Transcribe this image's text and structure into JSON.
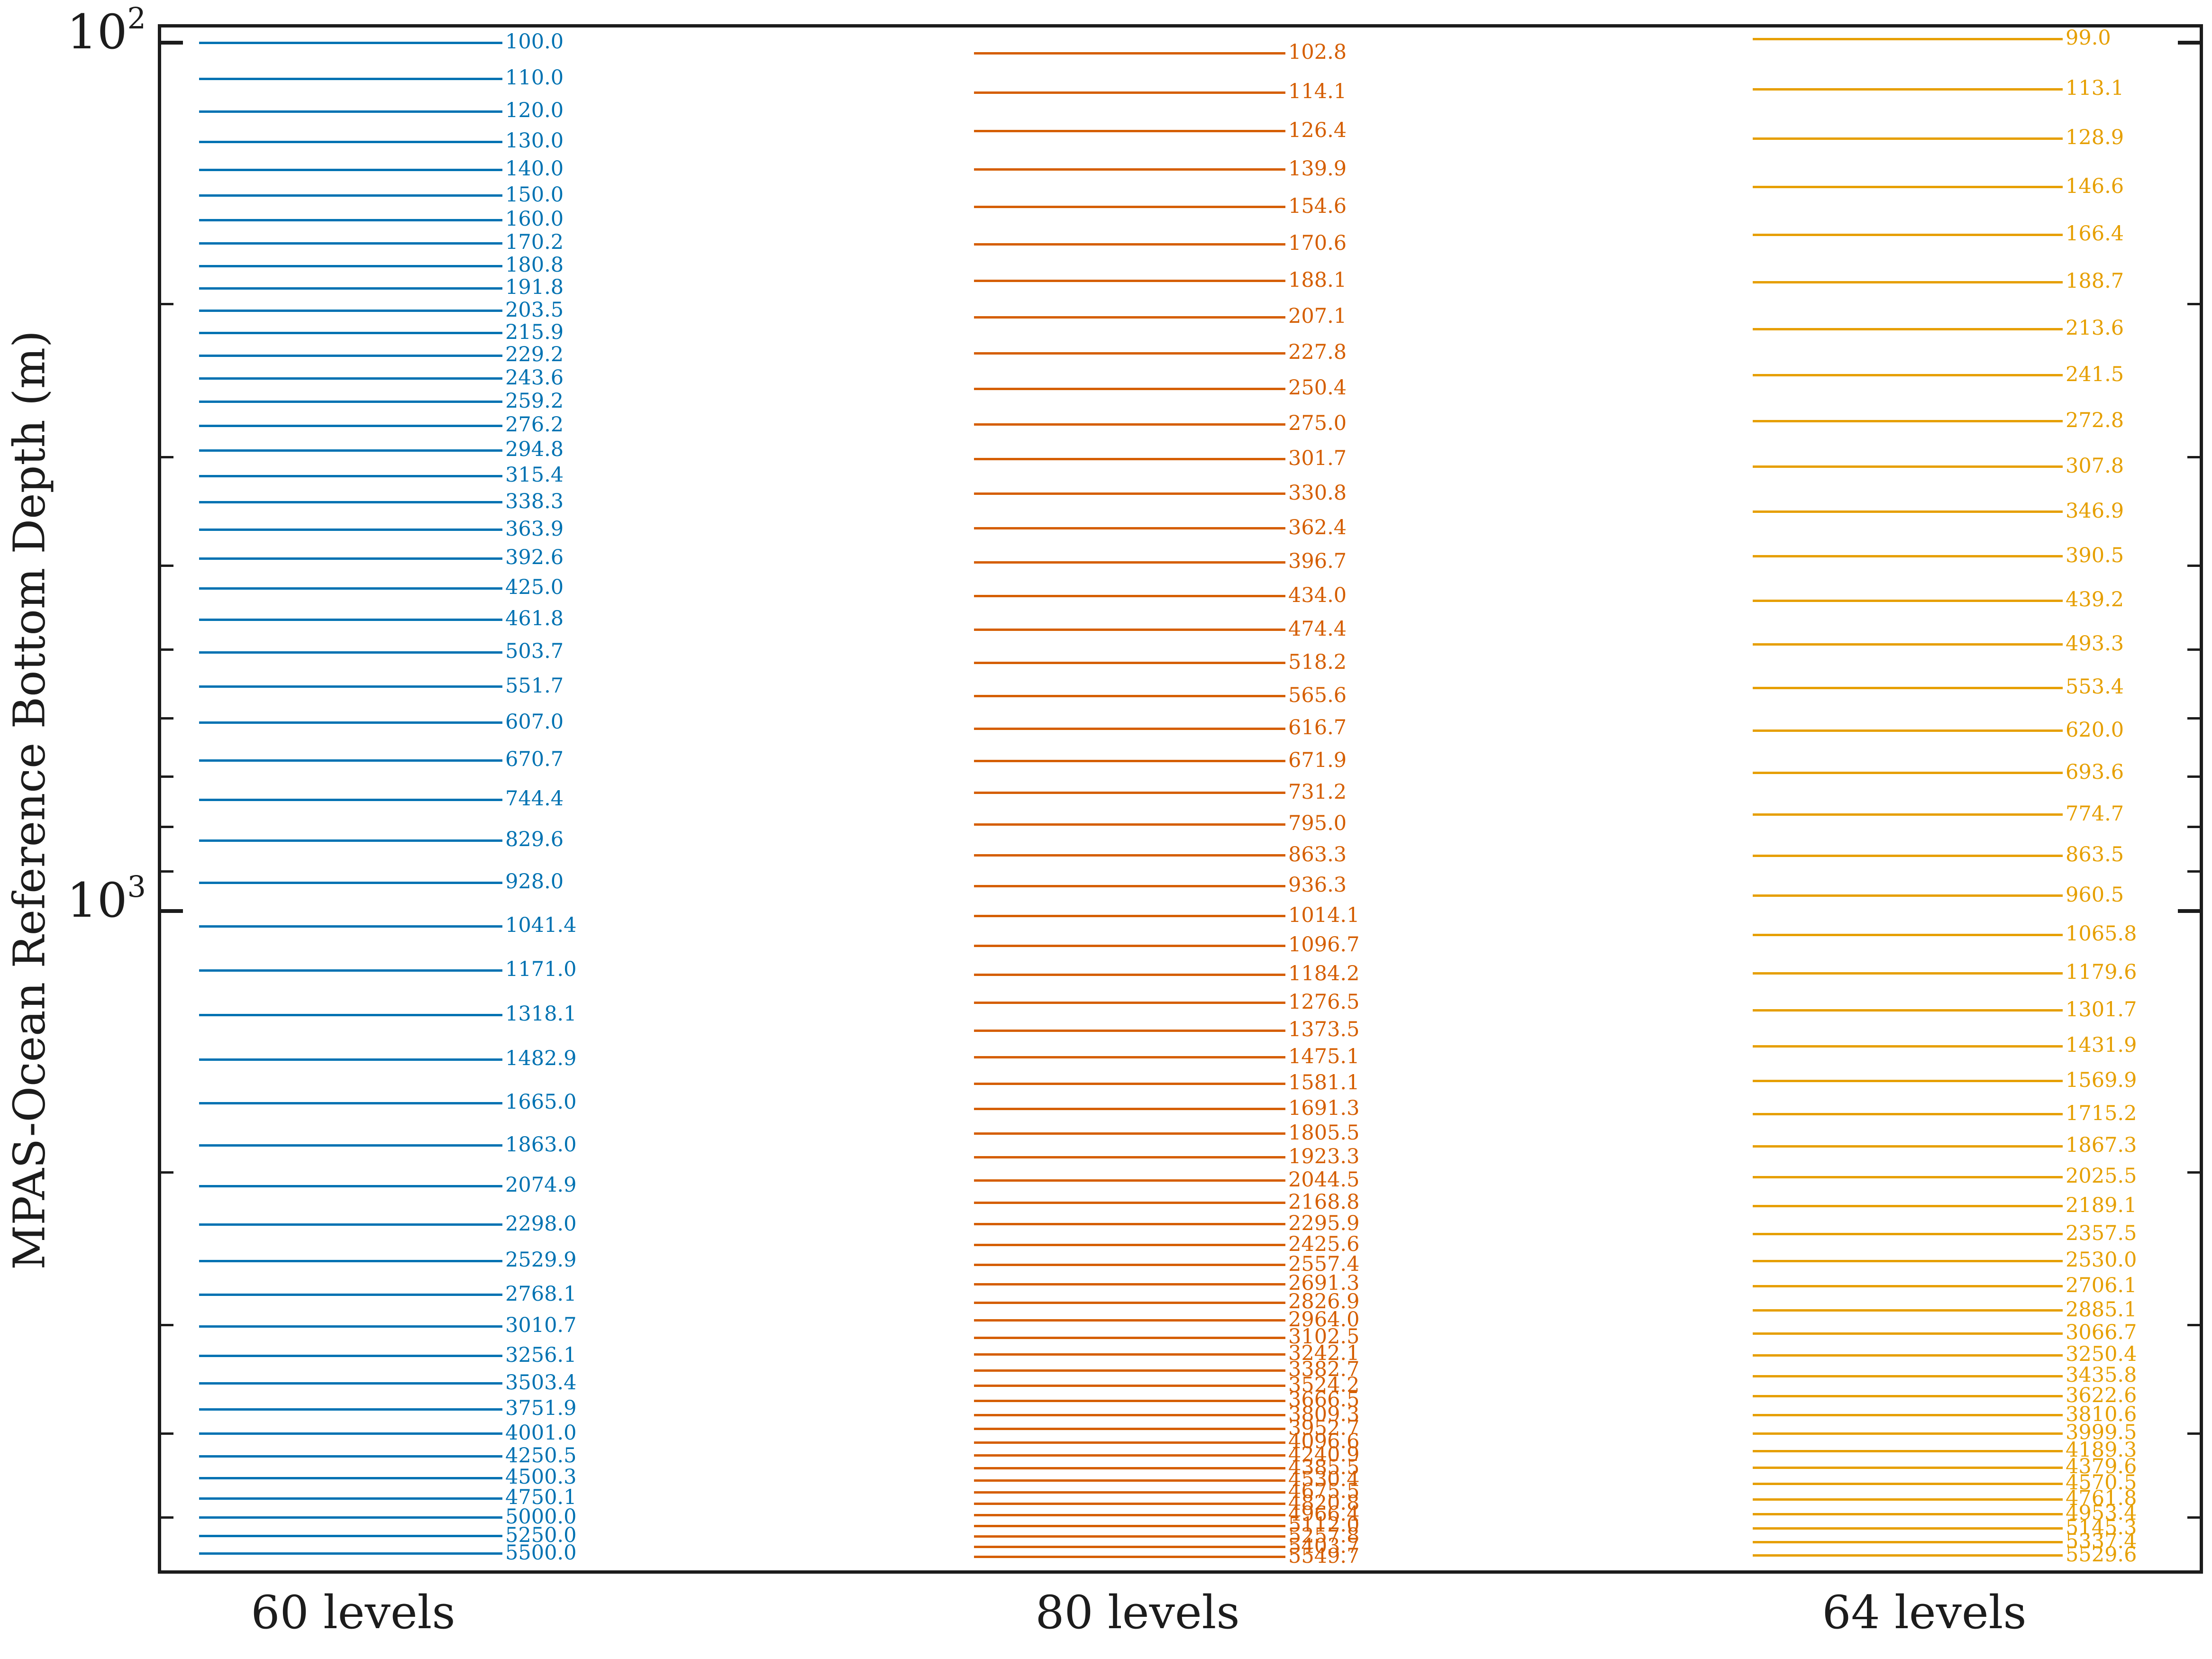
{
  "figure": {
    "colors": {
      "spine": "#1c1c1c",
      "text": "#1c1c1c",
      "series_60_levels": "#0072B2",
      "series_80_levels": "#D55E00",
      "series_64_levels": "#E69F00"
    },
    "y_axis": {
      "label": "MPAS-Ocean Reference Bottom Depth (m)",
      "scale": "log",
      "inverted": true,
      "major_ticks": [
        {
          "base": "10",
          "exponent": "2",
          "value": 100
        },
        {
          "base": "10",
          "exponent": "3",
          "value": 1000
        }
      ],
      "minor_tick_values": [
        200,
        300,
        400,
        500,
        600,
        700,
        800,
        900,
        2000,
        3000,
        4000,
        5000
      ]
    },
    "x_axis": {
      "category_labels": [
        "60 levels",
        "80 levels",
        "64 levels"
      ]
    }
  },
  "chart_data": {
    "type": "line",
    "variant": "horizontal-level-lines",
    "title": "",
    "xlabel": "",
    "ylabel": "MPAS-Ocean Reference Bottom Depth (m)",
    "yscale": "log",
    "y_inverted": true,
    "ylim": [
      96,
      5750
    ],
    "grid": false,
    "legend": "none",
    "categories": [
      "60 levels",
      "80 levels",
      "64 levels"
    ],
    "series": [
      {
        "name": "60 levels",
        "color": "#0072B2",
        "values": [
          100.0,
          110.0,
          120.0,
          130.0,
          140.0,
          150.0,
          160.0,
          170.2,
          180.8,
          191.8,
          203.5,
          215.9,
          229.2,
          243.6,
          259.2,
          276.2,
          294.8,
          315.4,
          338.3,
          363.9,
          392.6,
          425.0,
          461.8,
          503.7,
          551.7,
          607.0,
          670.7,
          744.4,
          829.6,
          928.0,
          1041.4,
          1171.0,
          1318.1,
          1482.9,
          1665.0,
          1863.0,
          2074.9,
          2298.0,
          2529.9,
          2768.1,
          3010.7,
          3256.1,
          3503.4,
          3751.9,
          4001.0,
          4250.5,
          4500.3,
          4750.1,
          5000.0,
          5250.0,
          5500.0
        ]
      },
      {
        "name": "80 levels",
        "color": "#D55E00",
        "values": [
          102.8,
          114.1,
          126.4,
          139.9,
          154.6,
          170.6,
          188.1,
          207.1,
          227.8,
          250.4,
          275.0,
          301.7,
          330.8,
          362.4,
          396.7,
          434.0,
          474.4,
          518.2,
          565.6,
          616.7,
          671.9,
          731.2,
          795.0,
          863.3,
          936.3,
          1014.1,
          1096.7,
          1184.2,
          1276.5,
          1373.5,
          1475.1,
          1581.1,
          1691.3,
          1805.5,
          1923.3,
          2044.5,
          2168.8,
          2295.9,
          2425.6,
          2557.4,
          2691.3,
          2826.9,
          2964.0,
          3102.5,
          3242.1,
          3382.7,
          3524.2,
          3666.5,
          3809.3,
          3952.7,
          4096.6,
          4240.9,
          4385.5,
          4530.4,
          4675.5,
          4820.8,
          4966.4,
          5112.0,
          5257.8,
          5403.7,
          5549.7
        ]
      },
      {
        "name": "64 levels",
        "color": "#E69F00",
        "values": [
          99.0,
          113.1,
          128.9,
          146.6,
          166.4,
          188.7,
          213.6,
          241.5,
          272.8,
          307.8,
          346.9,
          390.5,
          439.2,
          493.3,
          553.4,
          620.0,
          693.6,
          774.7,
          863.5,
          960.5,
          1065.8,
          1179.6,
          1301.7,
          1431.9,
          1569.9,
          1715.2,
          1867.3,
          2025.5,
          2189.1,
          2357.5,
          2530.0,
          2706.1,
          2885.1,
          3066.7,
          3250.4,
          3435.8,
          3622.6,
          3810.6,
          3999.5,
          4189.3,
          4379.6,
          4570.5,
          4761.8,
          4953.4,
          5145.3,
          5337.4,
          5529.6
        ]
      }
    ]
  }
}
